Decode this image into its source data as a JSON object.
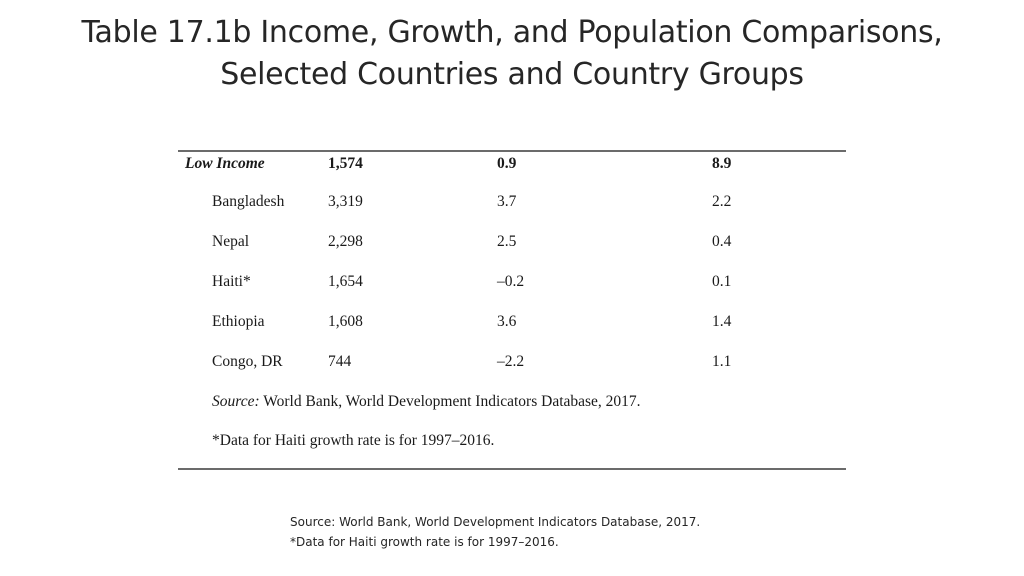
{
  "title": {
    "line1": "Table 17.1b Income, Growth, and Population Comparisons,",
    "line2": "Selected Countries and Country Groups"
  },
  "table": {
    "group_row": {
      "name": "Low Income",
      "income": "1,574",
      "growth": "0.9",
      "population": "8.9"
    },
    "rows": [
      {
        "name": "Bangladesh",
        "income": "3,319",
        "growth": "3.7",
        "population": "2.2"
      },
      {
        "name": "Nepal",
        "income": "2,298",
        "growth": "2.5",
        "population": "0.4"
      },
      {
        "name": "Haiti*",
        "income": "1,654",
        "growth": "–0.2",
        "population": "0.1"
      },
      {
        "name": "Ethiopia",
        "income": "1,608",
        "growth": "3.6",
        "population": "1.4"
      },
      {
        "name": "Congo, DR",
        "income": "744",
        "growth": "–2.2",
        "population": "1.1"
      }
    ],
    "source_label": "Source:",
    "source_text": "World Bank, World Development Indicators Database, 2017.",
    "footnote": "*Data for Haiti growth rate is for 1997–2016."
  },
  "footer": {
    "source": "Source: World Bank, World Development Indicators Database, 2017.",
    "footnote": "*Data for Haiti growth rate is for 1997–2016."
  }
}
